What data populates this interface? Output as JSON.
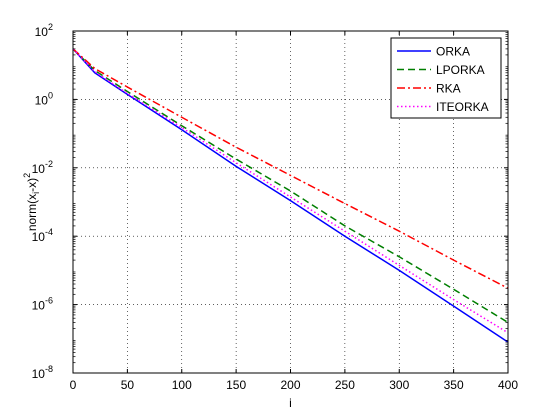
{
  "chart_data": {
    "type": "line",
    "title": "",
    "xlabel": "i",
    "ylabel": "norm(x_i - x)^2",
    "xlim": [
      0,
      400
    ],
    "ylim": [
      1e-08,
      100
    ],
    "yscale": "log",
    "grid": true,
    "legend_position": "top-right",
    "x_ticks": [
      0,
      50,
      100,
      150,
      200,
      250,
      300,
      350,
      400
    ],
    "y_ticks": [
      {
        "value": 100,
        "base": "10",
        "exp": "2"
      },
      {
        "value": 1,
        "base": "10",
        "exp": "0"
      },
      {
        "value": 0.01,
        "base": "10",
        "exp": "-2"
      },
      {
        "value": 0.0001,
        "base": "10",
        "exp": "-4"
      },
      {
        "value": 1e-06,
        "base": "10",
        "exp": "-6"
      },
      {
        "value": 1e-08,
        "base": "10",
        "exp": "-8"
      }
    ],
    "series": [
      {
        "name": "ORKA",
        "color": "#0000ff",
        "dash": "solid",
        "x": [
          0,
          20,
          50,
          100,
          150,
          200,
          250,
          300,
          350,
          400
        ],
        "y": [
          30,
          6,
          1.4,
          0.13,
          0.011,
          0.0011,
          0.0001,
          1e-05,
          9e-07,
          8e-08
        ]
      },
      {
        "name": "LPORKA",
        "color": "#007f00",
        "dash": "dashed",
        "x": [
          0,
          20,
          50,
          100,
          150,
          200,
          250,
          300,
          350,
          400
        ],
        "y": [
          30,
          7,
          1.7,
          0.17,
          0.018,
          0.0021,
          0.0002,
          2.5e-05,
          2.8e-06,
          3e-07
        ]
      },
      {
        "name": "RKA",
        "color": "#ff0000",
        "dash": "dashdot",
        "x": [
          0,
          20,
          50,
          100,
          150,
          200,
          250,
          300,
          350,
          400
        ],
        "y": [
          30,
          8,
          2.3,
          0.3,
          0.04,
          0.006,
          0.0009,
          0.00014,
          2e-05,
          3e-06
        ]
      },
      {
        "name": "ITEORKA",
        "color": "#ff00ff",
        "dash": "dotted",
        "x": [
          0,
          20,
          50,
          100,
          150,
          200,
          250,
          300,
          350,
          400
        ],
        "y": [
          30,
          6.5,
          1.5,
          0.15,
          0.014,
          0.0014,
          0.00014,
          1.4e-05,
          1.4e-06,
          1.5e-07
        ]
      }
    ]
  }
}
